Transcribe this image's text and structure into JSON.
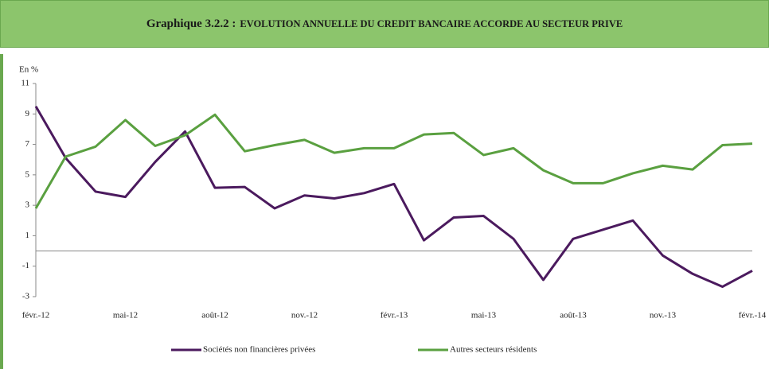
{
  "chart_data": {
    "type": "line",
    "title_label": "Graphique 3.2.2 :",
    "title": "EVOLUTION ANNUELLE DU CREDIT BANCAIRE ACCORDE AU SECTEUR PRIVE",
    "y_label": "En %",
    "categories": [
      "févr.-12",
      null,
      null,
      "mai-12",
      null,
      null,
      "août-12",
      null,
      null,
      "nov.-12",
      null,
      null,
      "févr.-13",
      null,
      null,
      "mai-13",
      null,
      null,
      "août-13",
      null,
      null,
      "nov.-13",
      null,
      null,
      "févr.-14"
    ],
    "series": [
      {
        "name": "Sociétés non financières privées",
        "color": "#4b1a5e",
        "values": [
          9.5,
          6.1,
          3.9,
          3.55,
          5.85,
          7.85,
          4.15,
          4.2,
          2.8,
          3.65,
          3.45,
          3.8,
          4.4,
          0.7,
          2.2,
          2.3,
          0.8,
          -1.9,
          0.8,
          1.4,
          2.0,
          -0.3,
          -1.5,
          -2.35,
          -1.3
        ]
      },
      {
        "name": "Autres secteurs résidents",
        "color": "#5aa040",
        "values": [
          2.8,
          6.2,
          6.85,
          8.6,
          6.9,
          7.6,
          8.95,
          6.55,
          6.95,
          7.3,
          6.45,
          6.75,
          6.75,
          7.65,
          7.75,
          6.3,
          6.75,
          5.3,
          4.45,
          4.45,
          5.1,
          5.6,
          5.35,
          6.95,
          7.05
        ]
      }
    ],
    "ylim": [
      -3,
      11
    ],
    "yticks": [
      11,
      9,
      7,
      5,
      3,
      1,
      -1,
      -3
    ]
  }
}
